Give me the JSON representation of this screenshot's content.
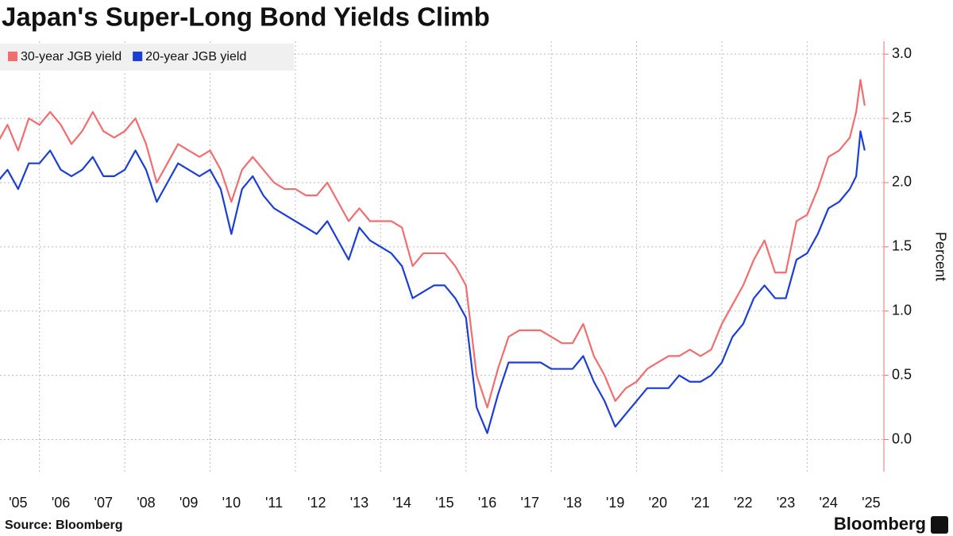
{
  "chart_data": {
    "type": "line",
    "title": "Japan's Super-Long Bond Yields Climb",
    "y_label": "Percent",
    "source": "Source: Bloomberg",
    "brand": "Bloomberg",
    "legend": "top-left",
    "grid": true,
    "xlim": [
      2005,
      2025.8
    ],
    "ylim": [
      -0.25,
      3.1
    ],
    "xticks": [
      {
        "value": 2005.5,
        "label": "'05"
      },
      {
        "value": 2006.5,
        "label": "'06"
      },
      {
        "value": 2007.5,
        "label": "'07"
      },
      {
        "value": 2008.5,
        "label": "'08"
      },
      {
        "value": 2009.5,
        "label": "'09"
      },
      {
        "value": 2010.5,
        "label": "'10"
      },
      {
        "value": 2011.5,
        "label": "'11"
      },
      {
        "value": 2012.5,
        "label": "'12"
      },
      {
        "value": 2013.5,
        "label": "'13"
      },
      {
        "value": 2014.5,
        "label": "'14"
      },
      {
        "value": 2015.5,
        "label": "'15"
      },
      {
        "value": 2016.5,
        "label": "'16"
      },
      {
        "value": 2017.5,
        "label": "'17"
      },
      {
        "value": 2018.5,
        "label": "'18"
      },
      {
        "value": 2019.5,
        "label": "'19"
      },
      {
        "value": 2020.5,
        "label": "'20"
      },
      {
        "value": 2021.5,
        "label": "'21"
      },
      {
        "value": 2022.5,
        "label": "'22"
      },
      {
        "value": 2023.5,
        "label": "'23"
      },
      {
        "value": 2024.5,
        "label": "'24"
      },
      {
        "value": 2025.5,
        "label": "'25"
      }
    ],
    "yticks": [
      {
        "value": 0,
        "label": "0.0"
      },
      0.5,
      {
        "value": 1,
        "label": "1.0"
      },
      1.5,
      {
        "value": 2,
        "label": "2.0"
      },
      2.5,
      {
        "value": 3,
        "label": "3.0"
      }
    ],
    "x": [
      2005.0,
      2005.25,
      2005.5,
      2005.75,
      2006.0,
      2006.25,
      2006.5,
      2006.75,
      2007.0,
      2007.25,
      2007.5,
      2007.75,
      2008.0,
      2008.25,
      2008.5,
      2008.75,
      2009.0,
      2009.25,
      2009.5,
      2009.75,
      2010.0,
      2010.25,
      2010.5,
      2010.75,
      2011.0,
      2011.25,
      2011.5,
      2011.75,
      2012.0,
      2012.25,
      2012.5,
      2012.75,
      2013.0,
      2013.25,
      2013.5,
      2013.75,
      2014.0,
      2014.25,
      2014.5,
      2014.75,
      2015.0,
      2015.25,
      2015.5,
      2015.75,
      2016.0,
      2016.25,
      2016.5,
      2016.75,
      2017.0,
      2017.25,
      2017.5,
      2017.75,
      2018.0,
      2018.25,
      2018.5,
      2018.75,
      2019.0,
      2019.25,
      2019.5,
      2019.75,
      2020.0,
      2020.25,
      2020.5,
      2020.75,
      2021.0,
      2021.25,
      2021.5,
      2021.75,
      2022.0,
      2022.25,
      2022.5,
      2022.75,
      2023.0,
      2023.25,
      2023.5,
      2023.75,
      2024.0,
      2024.25,
      2024.5,
      2024.75,
      2025.0,
      2025.15,
      2025.25,
      2025.35
    ],
    "series": [
      {
        "name": "30-year JGB yield",
        "color": "#f26d6d",
        "values": [
          2.3,
          2.45,
          2.25,
          2.5,
          2.45,
          2.55,
          2.45,
          2.3,
          2.4,
          2.55,
          2.4,
          2.35,
          2.4,
          2.5,
          2.3,
          2.0,
          2.15,
          2.3,
          2.25,
          2.2,
          2.25,
          2.1,
          1.85,
          2.1,
          2.2,
          2.1,
          2.0,
          1.95,
          1.95,
          1.9,
          1.9,
          2.0,
          1.85,
          1.7,
          1.8,
          1.7,
          1.7,
          1.7,
          1.65,
          1.35,
          1.45,
          1.45,
          1.45,
          1.35,
          1.2,
          0.5,
          0.25,
          0.55,
          0.8,
          0.85,
          0.85,
          0.85,
          0.8,
          0.75,
          0.75,
          0.9,
          0.65,
          0.5,
          0.3,
          0.4,
          0.45,
          0.55,
          0.6,
          0.65,
          0.65,
          0.7,
          0.65,
          0.7,
          0.9,
          1.05,
          1.2,
          1.4,
          1.55,
          1.3,
          1.3,
          1.7,
          1.75,
          1.95,
          2.2,
          2.25,
          2.35,
          2.55,
          2.8,
          2.6
        ]
      },
      {
        "name": "20-year JGB yield",
        "color": "#1a3fd6",
        "values": [
          2.0,
          2.1,
          1.95,
          2.15,
          2.15,
          2.25,
          2.1,
          2.05,
          2.1,
          2.2,
          2.05,
          2.05,
          2.1,
          2.25,
          2.1,
          1.85,
          2.0,
          2.15,
          2.1,
          2.05,
          2.1,
          1.95,
          1.6,
          1.95,
          2.05,
          1.9,
          1.8,
          1.75,
          1.7,
          1.65,
          1.6,
          1.7,
          1.55,
          1.4,
          1.65,
          1.55,
          1.5,
          1.45,
          1.35,
          1.1,
          1.15,
          1.2,
          1.2,
          1.1,
          0.95,
          0.25,
          0.05,
          0.35,
          0.6,
          0.6,
          0.6,
          0.6,
          0.55,
          0.55,
          0.55,
          0.65,
          0.45,
          0.3,
          0.1,
          0.2,
          0.3,
          0.4,
          0.4,
          0.4,
          0.5,
          0.45,
          0.45,
          0.5,
          0.6,
          0.8,
          0.9,
          1.1,
          1.2,
          1.1,
          1.1,
          1.4,
          1.45,
          1.6,
          1.8,
          1.85,
          1.95,
          2.05,
          2.4,
          2.25
        ]
      }
    ]
  }
}
